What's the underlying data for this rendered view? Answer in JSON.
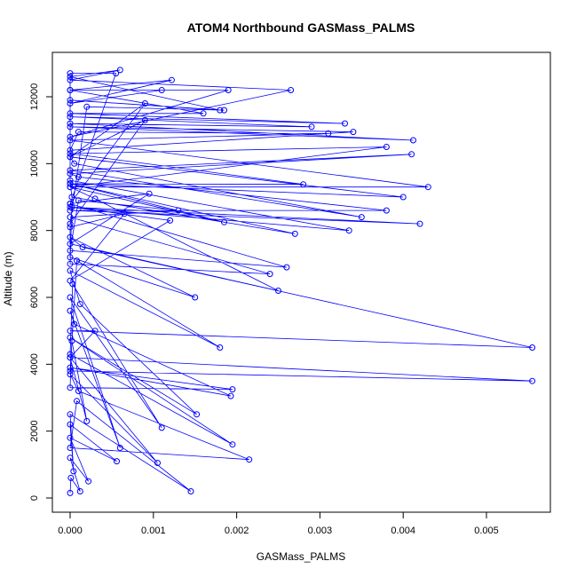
{
  "chart_data": {
    "type": "scatter",
    "title": "ATOM4 Northbound GASMass_PALMS",
    "xlabel": "GASMass_PALMS",
    "ylabel": "Altitude (m)",
    "xlim": [
      0.0,
      0.0055
    ],
    "ylim": [
      0,
      12800
    ],
    "x_ticks": [
      0.0,
      0.001,
      0.002,
      0.003,
      0.004,
      0.005
    ],
    "x_tick_labels": [
      "0.000",
      "0.001",
      "0.002",
      "0.003",
      "0.004",
      "0.005"
    ],
    "y_ticks": [
      0,
      2000,
      4000,
      6000,
      8000,
      10000,
      12000
    ],
    "y_tick_labels": [
      "0",
      "2000",
      "4000",
      "6000",
      "8000",
      "10000",
      "12000"
    ],
    "grid": false,
    "legend": "none",
    "marker": "open-circle",
    "connected": true,
    "colors": {
      "series": "#0000ff",
      "axes": "#000000"
    },
    "series": [
      {
        "x": [
          0.0,
          1e-05,
          0.00012,
          0.0,
          0.00022,
          0.0,
          0.00056,
          0.0,
          4e-05,
          0.0,
          0.00145,
          8e-05,
          0.0,
          0.00215,
          0.0001,
          0.0,
          0.00105,
          0.0,
          0.0002,
          2e-05,
          0.0,
          0.00195,
          0.0,
          0.00193,
          5e-05,
          0.0,
          0.0006,
          0.0,
          0.0011,
          3e-05,
          0.0,
          0.00195,
          0.0,
          0.00152,
          0.00012,
          0.0,
          0.0018,
          8e-05,
          0.0,
          0.00555,
          0.0,
          0.0003,
          0.0,
          0.00555,
          0.00015,
          0.0,
          0.0015,
          0.0,
          0.0,
          0.00065,
          0.0,
          0.0012,
          2e-05,
          0.0,
          0.0024,
          0.0,
          0.0013,
          0.0001,
          0.0,
          0.0026,
          0.0,
          0.00095,
          0.0,
          0.0025,
          0.0003,
          0.0,
          0.00185,
          0.0,
          0.0027,
          2e-05,
          0.0,
          0.00335,
          0.0,
          0.0042,
          0.0,
          0.0038,
          0.0001,
          0.0,
          0.0041,
          0.0,
          0.0035,
          5e-05,
          0.0,
          0.004,
          0.0,
          0.0028,
          0.0,
          0.0038,
          0.0,
          0.0043,
          0.0,
          0.0031,
          0.0001,
          0.0,
          0.0034,
          0.0,
          0.00412,
          0.0,
          0.0029,
          0.0,
          0.0033,
          0.0,
          0.0016,
          0.0,
          0.0011,
          0.0,
          0.00122,
          0.0,
          0.0019,
          0.0,
          0.00265,
          0.0,
          0.0006,
          0.0,
          0.0018,
          0.0,
          0.00185,
          0.0002,
          0.0,
          0.0009,
          0.0,
          0.0009,
          0.0,
          0.00055,
          0.0,
          0.0
        ],
        "y": [
          150,
          600,
          200,
          1200,
          500,
          1800,
          1100,
          2200,
          800,
          2500,
          200,
          2900,
          1500,
          1150,
          3200,
          3700,
          1050,
          4200,
          2300,
          4700,
          3300,
          3250,
          3900,
          3050,
          5200,
          5600,
          1500,
          6000,
          2100,
          6400,
          4300,
          1600,
          4800,
          2500,
          5800,
          6800,
          4500,
          7100,
          3800,
          3500,
          4200,
          5000,
          5000,
          4500,
          7500,
          7800,
          6000,
          7200,
          8100,
          8500,
          6500,
          8300,
          8700,
          7000,
          6700,
          8400,
          8600,
          8900,
          7400,
          6900,
          8800,
          9100,
          7600,
          6200,
          8950,
          9300,
          8250,
          9400,
          7900,
          9000,
          9500,
          8000,
          8700,
          8200,
          8600,
          8600,
          9600,
          9700,
          10280,
          9800,
          8400,
          10000,
          10200,
          9000,
          9400,
          9380,
          10300,
          10500,
          9300,
          9300,
          10700,
          10900,
          10950,
          10400,
          10950,
          11100,
          10700,
          11200,
          11100,
          11400,
          11200,
          11500,
          11500,
          12200,
          12200,
          11800,
          12500,
          12200,
          12200,
          10800,
          12200,
          12500,
          12800,
          12600,
          11600,
          11900,
          11600,
          11700,
          8200,
          11300,
          10200,
          11800,
          8800,
          12700,
          12700,
          9400
        ]
      }
    ]
  }
}
